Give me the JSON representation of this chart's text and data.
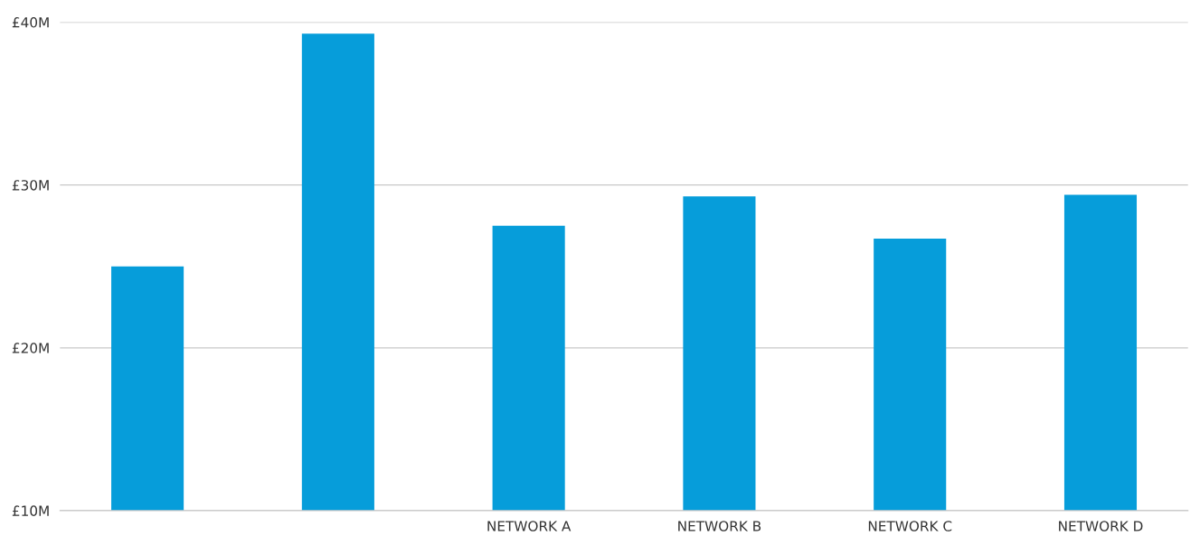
{
  "chart_data": {
    "type": "bar",
    "categories": [
      null,
      null,
      "NETWORK A",
      "NETWORK B",
      "NETWORK C",
      "NETWORK D"
    ],
    "values": [
      25.0,
      39.3,
      27.5,
      29.3,
      26.7,
      29.4
    ],
    "color": "#069dda",
    "ylim": [
      10,
      40
    ],
    "yticks": [
      {
        "value": 10,
        "label": "£10M"
      },
      {
        "value": 20,
        "label": "£20M"
      },
      {
        "value": 30,
        "label": "£30M"
      },
      {
        "value": 40,
        "label": "£40M"
      }
    ],
    "grid": "y"
  }
}
